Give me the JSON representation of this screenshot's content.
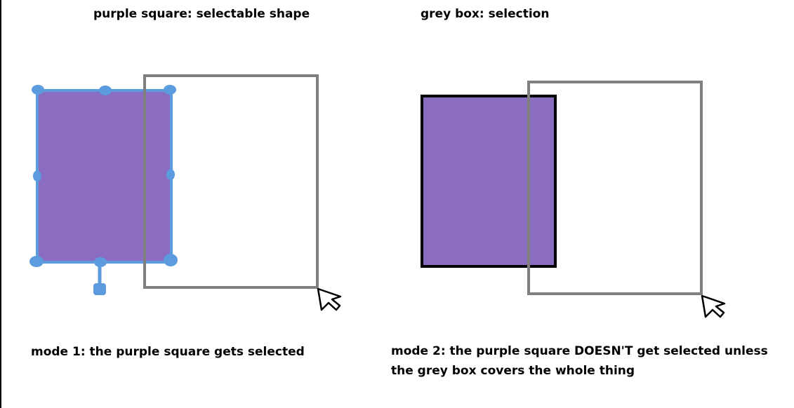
{
  "legend": {
    "shape": "purple square: selectable shape",
    "selection": "grey box: selection"
  },
  "modes": {
    "mode1": "mode 1: the purple square gets selected",
    "mode2_line1": "mode 2: the purple square DOESN'T get selected unless",
    "mode2_line2": "the grey box covers the whole thing"
  },
  "colors": {
    "shape_fill": "#8a6dc1",
    "selection_stroke": "#7f7f7f",
    "handle": "#5b9bde",
    "outline": "#000000",
    "background": "#ffffff"
  },
  "icons": {
    "cursor": "cursor-arrow-icon"
  }
}
